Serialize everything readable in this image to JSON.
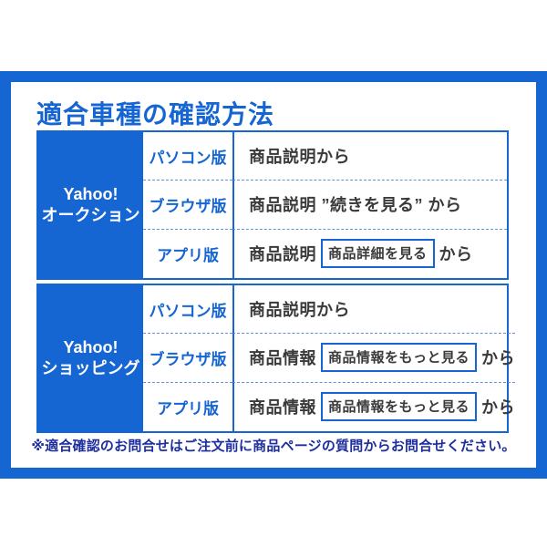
{
  "page": {
    "title": "適合車種の確認方法",
    "footer_note": "※適合確認のお問合せはご注文前に商品ページの質問からお問合せください。"
  },
  "colors": {
    "accent_blue": "#1565d2",
    "dashed_divider_blue": "#5b93dd",
    "body_text": "#3a3a3a",
    "footer_text_navy": "#1e2f9d",
    "background": "#ffffff",
    "service_cell_text": "#ffffff"
  },
  "sections": [
    {
      "service_line1": "Yahoo!",
      "service_line2": "オークション",
      "rows": [
        {
          "platform": "パソコン版",
          "text": "商品説明から"
        },
        {
          "platform": "ブラウザ版",
          "text": "商品説明 ”続きを見る” から"
        },
        {
          "platform": "アプリ版",
          "text_prefix": "商品説明",
          "button": "商品詳細を見る",
          "text_suffix": "から"
        }
      ]
    },
    {
      "service_line1": "Yahoo!",
      "service_line2": "ショッピング",
      "rows": [
        {
          "platform": "パソコン版",
          "text": "商品説明から"
        },
        {
          "platform": "ブラウザ版",
          "text_prefix": "商品情報",
          "button": "商品情報をもっと見る",
          "text_suffix": "から"
        },
        {
          "platform": "アプリ版",
          "text_prefix": "商品情報",
          "button": "商品情報をもっと見る",
          "text_suffix": "から"
        }
      ]
    }
  ]
}
